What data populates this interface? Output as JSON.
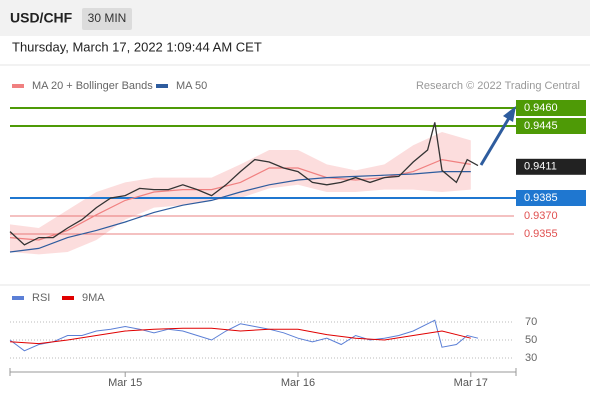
{
  "header": {
    "symbol": "USD/CHF",
    "interval": "30 MIN",
    "datetime": "Thursday, March 17, 2022 1:09:44 AM CET",
    "source": "Research © 2022 Trading Central"
  },
  "chart_data": [
    {
      "type": "line",
      "xlim": [
        0,
        140
      ],
      "ylim": [
        0.9315,
        0.9485
      ],
      "price": {
        "color": "#333333",
        "x": [
          0,
          4,
          8,
          12,
          16,
          20,
          24,
          28,
          32,
          36,
          40,
          44,
          48,
          52,
          56,
          60,
          64,
          68,
          72,
          76,
          80,
          84,
          88,
          92,
          96,
          100,
          104,
          108,
          112,
          116,
          118,
          120,
          124,
          127,
          130
        ],
        "values": [
          0.9357,
          0.9346,
          0.9352,
          0.9352,
          0.936,
          0.9367,
          0.9377,
          0.9385,
          0.9387,
          0.9393,
          0.9392,
          0.9392,
          0.9396,
          0.9392,
          0.9387,
          0.9396,
          0.9407,
          0.9417,
          0.9415,
          0.941,
          0.9407,
          0.9398,
          0.9396,
          0.9398,
          0.9402,
          0.9398,
          0.9402,
          0.9403,
          0.9415,
          0.9425,
          0.9448,
          0.9408,
          0.9398,
          0.9417,
          0.9412
        ]
      },
      "series": [
        {
          "name": "MA 20 + Bollinger Bands",
          "color": "#f08080",
          "band_color": "#fbd4d4",
          "x": [
            0,
            8,
            16,
            24,
            32,
            40,
            48,
            56,
            64,
            72,
            80,
            88,
            96,
            104,
            112,
            120,
            128
          ],
          "values": [
            0.9352,
            0.935,
            0.9358,
            0.9371,
            0.9383,
            0.939,
            0.9392,
            0.9392,
            0.9398,
            0.941,
            0.941,
            0.9402,
            0.94,
            0.9402,
            0.9407,
            0.9417,
            0.9413
          ],
          "upper": [
            0.9363,
            0.936,
            0.9375,
            0.939,
            0.9398,
            0.9402,
            0.9402,
            0.9402,
            0.9413,
            0.9425,
            0.9425,
            0.9413,
            0.9408,
            0.9413,
            0.9429,
            0.944,
            0.9433
          ],
          "lower": [
            0.934,
            0.9338,
            0.934,
            0.935,
            0.9367,
            0.9377,
            0.9379,
            0.9383,
            0.9385,
            0.9393,
            0.9396,
            0.939,
            0.939,
            0.9392,
            0.9392,
            0.939,
            0.9392
          ]
        },
        {
          "name": "MA 50",
          "color": "#2e5c9e",
          "x": [
            0,
            8,
            16,
            24,
            32,
            40,
            48,
            56,
            64,
            72,
            80,
            88,
            96,
            104,
            112,
            120,
            128
          ],
          "values": [
            0.934,
            0.9343,
            0.9352,
            0.9358,
            0.9365,
            0.9373,
            0.9379,
            0.9383,
            0.939,
            0.9396,
            0.94,
            0.9402,
            0.9403,
            0.9404,
            0.9405,
            0.9407,
            0.9407
          ]
        }
      ],
      "levels": [
        {
          "value": 0.946,
          "label": "0.9460",
          "color": "#4e9a06",
          "style": "box"
        },
        {
          "value": 0.9445,
          "label": "0.9445",
          "color": "#4e9a06",
          "style": "box"
        },
        {
          "value": 0.9411,
          "label": "0.9411",
          "color": "#222222",
          "style": "tag"
        },
        {
          "value": 0.9385,
          "label": "0.9385",
          "color": "#1f77d0",
          "style": "box"
        },
        {
          "value": 0.937,
          "label": "0.9370",
          "color": "#e05050",
          "style": "text"
        },
        {
          "value": 0.9355,
          "label": "0.9355",
          "color": "#e05050",
          "style": "text"
        }
      ]
    },
    {
      "type": "line",
      "xlim": [
        0,
        140
      ],
      "ylim": [
        15,
        85
      ],
      "yticks": [
        70,
        50,
        30
      ],
      "xticks": [
        {
          "value": 32,
          "label": "Mar 15"
        },
        {
          "value": 80,
          "label": "Mar 16"
        },
        {
          "value": 128,
          "label": "Mar 17"
        }
      ],
      "series": [
        {
          "name": "RSI",
          "color": "#5b7fd6",
          "x": [
            0,
            4,
            8,
            12,
            16,
            20,
            24,
            28,
            32,
            36,
            40,
            44,
            48,
            52,
            56,
            60,
            64,
            68,
            72,
            76,
            80,
            84,
            88,
            92,
            96,
            100,
            104,
            108,
            112,
            116,
            118,
            120,
            124,
            127,
            130
          ],
          "values": [
            50,
            38,
            45,
            48,
            55,
            55,
            60,
            62,
            65,
            62,
            58,
            62,
            60,
            55,
            50,
            60,
            68,
            65,
            62,
            58,
            52,
            48,
            52,
            45,
            55,
            50,
            52,
            55,
            60,
            68,
            72,
            42,
            45,
            55,
            52
          ]
        },
        {
          "name": "9MA",
          "color": "#e00000",
          "x": [
            0,
            8,
            16,
            24,
            32,
            40,
            48,
            56,
            64,
            72,
            80,
            88,
            96,
            104,
            112,
            120,
            128
          ],
          "values": [
            48,
            46,
            50,
            55,
            60,
            62,
            63,
            63,
            60,
            62,
            62,
            56,
            52,
            50,
            55,
            60,
            52
          ]
        }
      ]
    }
  ]
}
